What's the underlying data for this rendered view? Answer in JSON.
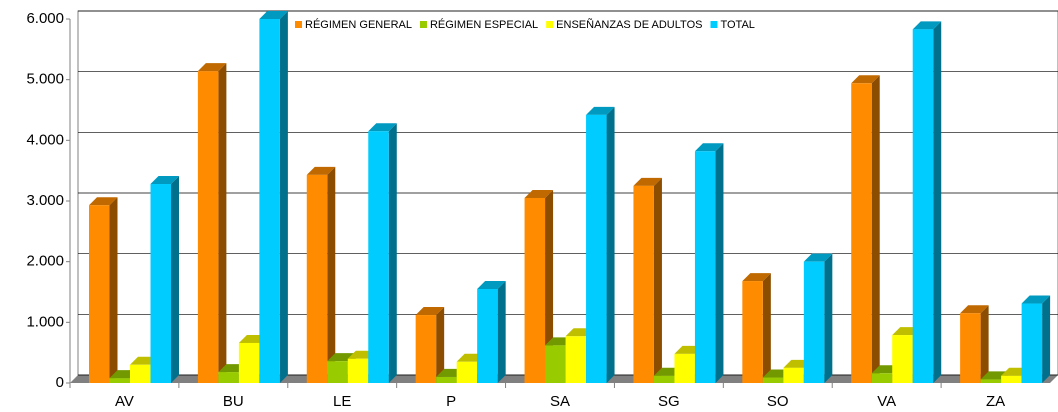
{
  "chart_data": {
    "type": "bar3d",
    "categories": [
      "AV",
      "BU",
      "LE",
      "P",
      "SA",
      "SG",
      "SO",
      "VA",
      "ZA"
    ],
    "series": [
      {
        "name": "RÉGIMEN GENERAL",
        "color": "#ff8c00",
        "values": [
          2930,
          5140,
          3430,
          1120,
          3050,
          3250,
          1680,
          4940,
          1150
        ]
      },
      {
        "name": "RÉGIMEN ESPECIAL",
        "color": "#99cc00",
        "values": [
          80,
          180,
          360,
          100,
          620,
          120,
          90,
          160,
          60
        ]
      },
      {
        "name": "ENSEÑANZAS DE ADULTOS",
        "color": "#ffff00",
        "values": [
          300,
          660,
          400,
          350,
          770,
          480,
          250,
          790,
          120
        ]
      },
      {
        "name": "TOTAL",
        "color": "#00ccff",
        "values": [
          3280,
          6000,
          4150,
          1550,
          4420,
          3820,
          2000,
          5830,
          1310
        ]
      }
    ],
    "ylim": [
      0,
      6000
    ],
    "yticks": [
      0,
      {
        "value": 1000,
        "label": "1.000"
      },
      {
        "value": 2000,
        "label": "2.000"
      },
      {
        "value": 3000,
        "label": "3.000"
      },
      {
        "value": 4000,
        "label": "4.000"
      },
      {
        "value": 5000,
        "label": "5.000"
      },
      {
        "value": 6000,
        "label": "6.000"
      }
    ],
    "grid": true,
    "legend": "top"
  }
}
